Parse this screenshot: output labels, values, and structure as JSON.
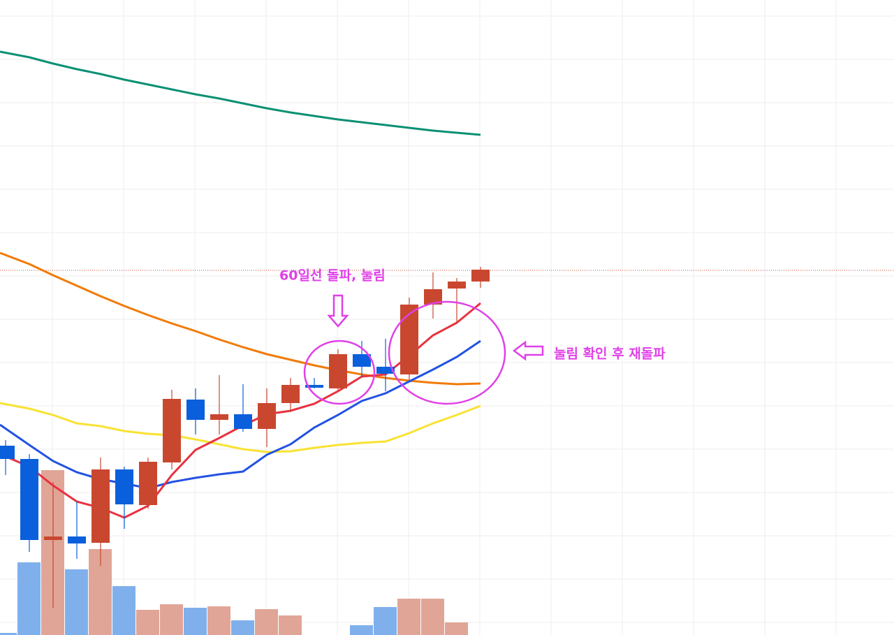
{
  "chart_data": {
    "type": "candlestick",
    "open": [
      271,
      252,
      136,
      141,
      132,
      237,
      186,
      247,
      337,
      308,
      316,
      295,
      332,
      358,
      353,
      402,
      384,
      373,
      473,
      496,
      506
    ],
    "high": [
      279,
      259,
      219,
      191,
      254,
      241,
      254,
      351,
      353,
      372,
      359,
      353,
      368,
      368,
      409,
      421,
      424,
      483,
      519,
      511,
      527
    ],
    "low": [
      229,
      119,
      39,
      109,
      99,
      152,
      181,
      237,
      287,
      287,
      291,
      269,
      319,
      353,
      351,
      369,
      349,
      364,
      453,
      447,
      497
    ],
    "close": [
      252,
      136,
      141,
      131,
      237,
      187,
      248,
      338,
      308,
      316,
      295,
      332,
      358,
      354,
      402,
      384,
      374,
      473,
      495,
      506,
      523
    ],
    "volume": [
      3,
      104,
      236,
      94,
      123,
      70,
      36,
      44,
      39,
      41,
      21,
      37,
      28,
      0,
      0,
      14,
      40,
      52,
      52,
      18,
      0
    ],
    "up_color": "#c9472f",
    "down_color": "#0a5fdc",
    "volume_up_color": "#e0a597",
    "volume_down_color": "#80b0ec",
    "moving_averages": [
      {
        "color": "#0a9074",
        "values": [
          835,
          827,
          818,
          810,
          803,
          795,
          788,
          781,
          774,
          768,
          761,
          754,
          748,
          743,
          738,
          734,
          730,
          726,
          722,
          719,
          716
        ]
      },
      {
        "color": "#f27a06",
        "values": [
          547,
          531,
          515,
          500,
          485,
          471,
          458,
          446,
          435,
          423,
          412,
          402,
          394,
          386,
          379,
          373,
          368,
          364,
          361,
          359,
          360
        ]
      },
      {
        "color": "#f9e233",
        "values": [
          332,
          324,
          315,
          303,
          299,
          292,
          288,
          286,
          280,
          273,
          266,
          262,
          263,
          268,
          272,
          275,
          277,
          289,
          303,
          315,
          328
        ]
      },
      {
        "color": "#2252e4",
        "values": [
          301,
          272,
          249,
          233,
          223,
          217,
          210,
          219,
          225,
          230,
          234,
          258,
          273,
          297,
          315,
          335,
          346,
          363,
          380,
          398,
          421
        ]
      },
      {
        "color": "#e8323f",
        "values": [
          259,
          241,
          214,
          191,
          182,
          168,
          185,
          229,
          265,
          282,
          300,
          316,
          321,
          331,
          349,
          370,
          373,
          400,
          429,
          447,
          475
        ]
      }
    ],
    "ylim": [
      0,
      909
    ],
    "price_line": 522,
    "annotations": [
      "60일선 돌파, 눌림",
      "눌림 확인 후 재돌파"
    ]
  }
}
